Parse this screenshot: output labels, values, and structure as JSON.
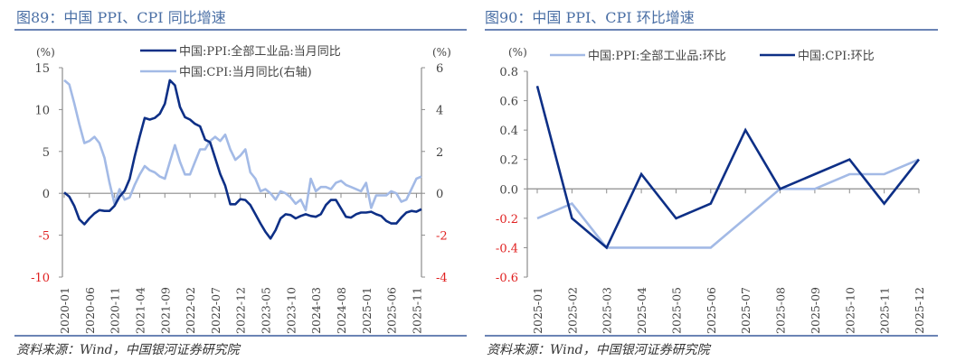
{
  "source_label": "资料来源：Wind，中国银河证券研究院",
  "colors": {
    "dark": "#0d2f86",
    "light": "#a3bae6",
    "axis": "#8c8c8c",
    "neg": "#e02020",
    "tick": "#444444"
  },
  "chart_data": [
    {
      "type": "line",
      "title": "图89：中国 PPI、CPI 同比增速",
      "ylabel_left": "(%)",
      "ylabel_right": "(%)",
      "ylim_left": [
        -10,
        15
      ],
      "ylim_right": [
        -4,
        6
      ],
      "yticks_left": [
        15,
        10,
        5,
        0,
        -5,
        -10
      ],
      "yticks_right": [
        6,
        4,
        2,
        0,
        -2,
        -4
      ],
      "legend_position": "top-center",
      "x_tick_labels": [
        "2020-01",
        "2020-06",
        "2020-11",
        "2021-04",
        "2021-09",
        "2022-02",
        "2022-07",
        "2022-12",
        "2023-05",
        "2023-10",
        "2024-03",
        "2024-08",
        "2025-01",
        "2025-06",
        "2025-11"
      ],
      "x": [
        "2020-01",
        "2020-02",
        "2020-03",
        "2020-04",
        "2020-05",
        "2020-06",
        "2020-07",
        "2020-08",
        "2020-09",
        "2020-10",
        "2020-11",
        "2020-12",
        "2021-01",
        "2021-02",
        "2021-03",
        "2021-04",
        "2021-05",
        "2021-06",
        "2021-07",
        "2021-08",
        "2021-09",
        "2021-10",
        "2021-11",
        "2021-12",
        "2022-01",
        "2022-02",
        "2022-03",
        "2022-04",
        "2022-05",
        "2022-06",
        "2022-07",
        "2022-08",
        "2022-09",
        "2022-10",
        "2022-11",
        "2022-12",
        "2023-01",
        "2023-02",
        "2023-03",
        "2023-04",
        "2023-05",
        "2023-06",
        "2023-07",
        "2023-08",
        "2023-09",
        "2023-10",
        "2023-11",
        "2023-12",
        "2024-01",
        "2024-02",
        "2024-03",
        "2024-04",
        "2024-05",
        "2024-06",
        "2024-07",
        "2024-08",
        "2024-09",
        "2024-10",
        "2024-11",
        "2024-12",
        "2025-01",
        "2025-02",
        "2025-03",
        "2025-04",
        "2025-05",
        "2025-06",
        "2025-07",
        "2025-08",
        "2025-09",
        "2025-10",
        "2025-11",
        "2025-12"
      ],
      "series": [
        {
          "name": "中国:PPI:全部工业品:当月同比",
          "axis": "left",
          "color": "#0d2f86",
          "values": [
            0.1,
            -0.4,
            -1.5,
            -3.1,
            -3.7,
            -3.0,
            -2.4,
            -2.0,
            -2.1,
            -2.1,
            -1.5,
            -0.4,
            0.3,
            1.7,
            4.4,
            6.8,
            9.0,
            8.8,
            9.0,
            9.5,
            10.7,
            13.5,
            12.9,
            10.3,
            9.1,
            8.8,
            8.3,
            8.0,
            6.4,
            6.1,
            4.2,
            2.3,
            0.9,
            -1.3,
            -1.3,
            -0.7,
            -0.8,
            -1.4,
            -2.5,
            -3.6,
            -4.6,
            -5.4,
            -4.4,
            -3.0,
            -2.5,
            -2.6,
            -3.0,
            -2.7,
            -2.5,
            -2.7,
            -2.8,
            -2.5,
            -1.4,
            -0.8,
            -0.8,
            -1.8,
            -2.8,
            -2.9,
            -2.5,
            -2.3,
            -2.3,
            -2.2,
            -2.5,
            -2.7,
            -3.3,
            -3.6,
            -3.6,
            -2.9,
            -2.3,
            -2.1,
            -2.2,
            -1.9
          ]
        },
        {
          "name": "中国:CPI:当月同比(右轴)",
          "axis": "right",
          "color": "#a3bae6",
          "values": [
            5.4,
            5.2,
            4.3,
            3.3,
            2.4,
            2.5,
            2.7,
            2.4,
            1.7,
            0.5,
            -0.5,
            0.2,
            -0.3,
            -0.2,
            0.4,
            0.9,
            1.3,
            1.1,
            1.0,
            0.8,
            0.7,
            1.5,
            2.3,
            1.5,
            0.9,
            0.9,
            1.5,
            2.1,
            2.1,
            2.5,
            2.7,
            2.5,
            2.8,
            2.1,
            1.6,
            1.8,
            2.1,
            1.0,
            0.7,
            0.1,
            0.2,
            0.0,
            -0.3,
            0.1,
            0.0,
            -0.2,
            -0.5,
            -0.3,
            -0.8,
            0.7,
            0.1,
            0.3,
            0.3,
            0.2,
            0.5,
            0.6,
            0.4,
            0.3,
            0.2,
            0.1,
            0.5,
            -0.7,
            -0.1,
            -0.1,
            -0.1,
            0.1,
            0.0,
            -0.4,
            -0.3,
            0.2,
            0.7,
            0.8
          ]
        }
      ]
    },
    {
      "type": "line",
      "title": "图90：中国 PPI、CPI 环比增速",
      "ylabel_left": "(%)",
      "ylim_left": [
        -0.6,
        0.8
      ],
      "yticks_left": [
        "0.8",
        "0.6",
        "0.4",
        "0.2",
        "0.0",
        "-0.2",
        "-0.4",
        "-0.6"
      ],
      "legend_position": "top",
      "x": [
        "2025-01",
        "2025-02",
        "2025-03",
        "2025-04",
        "2025-05",
        "2025-06",
        "2025-07",
        "2025-08",
        "2025-09",
        "2025-10",
        "2025-11",
        "2025-12"
      ],
      "x_tick_labels": [
        "2025-01",
        "2025-02",
        "2025-03",
        "2025-04",
        "2025-05",
        "2025-06",
        "2025-07",
        "2025-08",
        "2025-09",
        "2025-10",
        "2025-11",
        "2025-12"
      ],
      "series": [
        {
          "name": "中国:PPI:全部工业品:环比",
          "axis": "left",
          "color": "#a3bae6",
          "values": [
            -0.2,
            -0.1,
            -0.4,
            -0.4,
            -0.4,
            -0.4,
            -0.2,
            0.0,
            0.0,
            0.1,
            0.1,
            0.2
          ]
        },
        {
          "name": "中国:CPI:环比",
          "axis": "left",
          "color": "#0d2f86",
          "values": [
            0.7,
            -0.2,
            -0.4,
            0.1,
            -0.2,
            -0.1,
            0.4,
            0.0,
            0.1,
            0.2,
            -0.1,
            0.2
          ]
        }
      ]
    }
  ]
}
